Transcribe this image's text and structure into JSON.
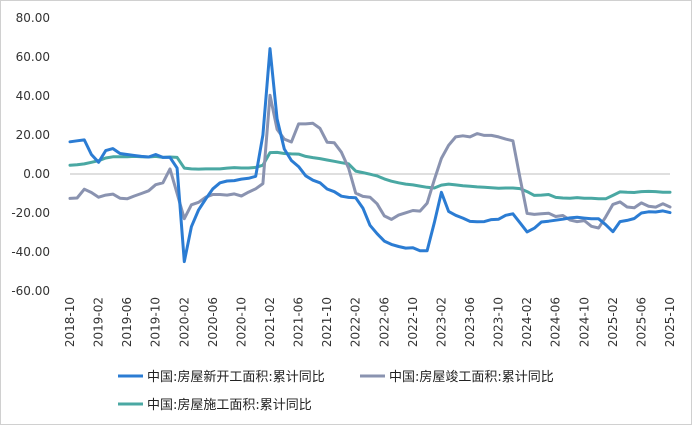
{
  "chart_data": {
    "type": "line",
    "title": "",
    "xlabel": "",
    "ylabel": "",
    "ylim": [
      -60,
      80
    ],
    "yticks": [
      80,
      60,
      40,
      20,
      0,
      -20,
      -40,
      -60
    ],
    "ytick_labels": [
      "80.00",
      "60.00",
      "40.00",
      "20.00",
      "0.00",
      "-20.00",
      "-40.00",
      "-60.00"
    ],
    "grid": false,
    "legend_position": "bottom",
    "x": [
      "2018-10",
      "2018-11",
      "2018-12",
      "2019-01",
      "2019-02",
      "2019-03",
      "2019-04",
      "2019-05",
      "2019-06",
      "2019-07",
      "2019-08",
      "2019-09",
      "2019-10",
      "2019-11",
      "2019-12",
      "2020-01",
      "2020-02",
      "2020-03",
      "2020-04",
      "2020-05",
      "2020-06",
      "2020-07",
      "2020-08",
      "2020-09",
      "2020-10",
      "2020-11",
      "2020-12",
      "2021-01",
      "2021-02",
      "2021-03",
      "2021-04",
      "2021-05",
      "2021-06",
      "2021-07",
      "2021-08",
      "2021-09",
      "2021-10",
      "2021-11",
      "2021-12",
      "2022-01",
      "2022-02",
      "2022-03",
      "2022-04",
      "2022-05",
      "2022-06",
      "2022-07",
      "2022-08",
      "2022-09",
      "2022-10",
      "2022-11",
      "2022-12",
      "2023-01",
      "2023-02",
      "2023-03",
      "2023-04",
      "2023-05",
      "2023-06",
      "2023-07",
      "2023-08",
      "2023-09",
      "2023-10",
      "2023-11",
      "2023-12",
      "2024-01",
      "2024-02",
      "2024-03",
      "2024-04",
      "2024-05",
      "2024-06",
      "2024-07",
      "2024-08",
      "2024-09",
      "2024-10",
      "2024-11",
      "2024-12",
      "2025-01",
      "2025-02",
      "2025-03",
      "2025-04",
      "2025-05",
      "2025-06",
      "2025-07",
      "2025-08",
      "2025-09",
      "2025-10"
    ],
    "x_tick_labels": [
      "2018-10",
      "2019-02",
      "2019-06",
      "2019-10",
      "2020-02",
      "2020-06",
      "2020-10",
      "2021-02",
      "2021-06",
      "2021-10",
      "2022-02",
      "2022-06",
      "2022-10",
      "2023-02",
      "2023-06",
      "2023-10",
      "2024-02",
      "2024-06",
      "2024-10",
      "2025-02",
      "2025-06",
      "2025-10"
    ],
    "series": [
      {
        "name": "中国:房屋新开工面积:累计同比",
        "color": "#2b7cd3",
        "values": [
          16.5,
          17,
          17.5,
          10,
          6,
          12,
          13,
          10.5,
          10,
          9.5,
          9,
          8.7,
          10,
          8.5,
          8.5,
          3,
          -44.9,
          -27,
          -18.4,
          -12.8,
          -7.6,
          -4.5,
          -3.6,
          -3.4,
          -2.6,
          -2.2,
          -1.2,
          20,
          64.3,
          28.2,
          12.8,
          6.9,
          3.8,
          -0.9,
          -3.2,
          -4.5,
          -7.7,
          -9.1,
          -11.4,
          -12,
          -12.2,
          -17.5,
          -26.3,
          -30.6,
          -34.4,
          -36.1,
          -37.2,
          -38,
          -37.8,
          -39.4,
          -39.4,
          -25,
          -9.4,
          -19.2,
          -21.2,
          -22.6,
          -24.3,
          -24.5,
          -24.4,
          -23.4,
          -23.2,
          -21.2,
          -20.4,
          -25,
          -29.7,
          -27.8,
          -24.6,
          -24.2,
          -23.7,
          -23.2,
          -22.5,
          -22.2,
          -22.6,
          -23,
          -23,
          -26,
          -29.6,
          -24.4,
          -23.8,
          -22.8,
          -20,
          -19.4,
          -19.5,
          -18.9,
          -19.8
        ]
      },
      {
        "name": "中国:房屋竣工面积:累计同比",
        "color": "#8a93b0",
        "values": [
          -12.5,
          -12.3,
          -7.8,
          -9.5,
          -11.9,
          -10.8,
          -10.3,
          -12.4,
          -12.7,
          -11.3,
          -10,
          -8.6,
          -5.5,
          -4.5,
          2.6,
          -10,
          -22.9,
          -15.8,
          -14.5,
          -11.9,
          -10.5,
          -10.5,
          -10.8,
          -10.2,
          -11.3,
          -9.3,
          -7.6,
          -4.9,
          40.4,
          22.9,
          17.9,
          16.4,
          25.7,
          25.7,
          26,
          23.4,
          16.3,
          16,
          11.2,
          3,
          -9.8,
          -11.5,
          -11.9,
          -15.3,
          -21.5,
          -23.3,
          -21.1,
          -19.9,
          -18.7,
          -19,
          -15,
          -3,
          8,
          14.7,
          19,
          19.6,
          19,
          20.7,
          19.8,
          19.8,
          19,
          17.9,
          17,
          -2,
          -20.2,
          -20.7,
          -20.4,
          -20.1,
          -21.8,
          -21.3,
          -23.6,
          -24.4,
          -23.9,
          -26.8,
          -27.7,
          -22,
          -15.6,
          -14.3,
          -16.9,
          -17.3,
          -14.8,
          -16.5,
          -17,
          -15.3,
          -16.9
        ]
      },
      {
        "name": "中国:房屋施工面积:累计同比",
        "color": "#4aa8a3",
        "values": [
          4.5,
          4.7,
          5.2,
          6,
          6.8,
          8.2,
          8.8,
          8.8,
          8.8,
          9,
          8.8,
          8.7,
          9,
          8.5,
          8.7,
          8.5,
          3,
          2.6,
          2.5,
          2.6,
          2.6,
          2.6,
          3,
          3.3,
          3.1,
          3.1,
          3.4,
          4.5,
          11,
          11.1,
          10.5,
          10.3,
          10.2,
          9,
          8.4,
          7.9,
          7.2,
          6.5,
          5.8,
          5.2,
          1.5,
          0.7,
          -0.1,
          -1,
          -2.5,
          -3.7,
          -4.5,
          -5.2,
          -5.6,
          -6.2,
          -6.8,
          -7.2,
          -5.7,
          -5.2,
          -5.6,
          -6,
          -6.3,
          -6.6,
          -6.8,
          -7,
          -7.3,
          -7.2,
          -7.2,
          -7.5,
          -9,
          -11,
          -10.8,
          -10.5,
          -12,
          -12.3,
          -12.4,
          -12.1,
          -12.4,
          -12.4,
          -12.7,
          -12.7,
          -11,
          -9.2,
          -9.4,
          -9.5,
          -9,
          -8.9,
          -9,
          -9.4,
          -9.4
        ]
      }
    ]
  }
}
